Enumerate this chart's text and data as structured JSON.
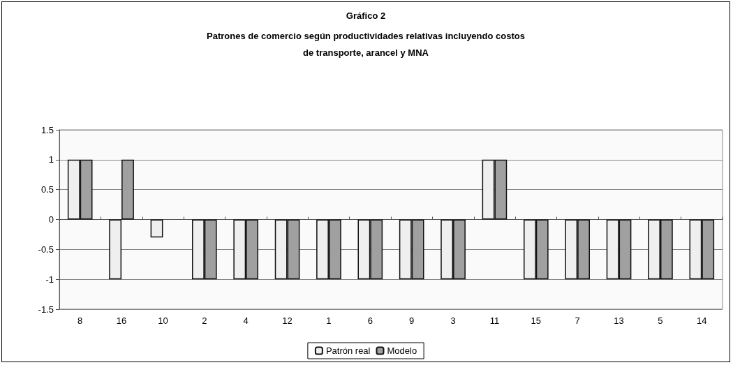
{
  "chart_data": {
    "type": "bar",
    "title": "Gráfico 2",
    "subtitle": "Patrones de comercio según productividades relativas incluyendo costos\nde transporte, arancel y MNA",
    "categories": [
      "8",
      "16",
      "10",
      "2",
      "4",
      "12",
      "1",
      "6",
      "9",
      "3",
      "11",
      "15",
      "7",
      "13",
      "5",
      "14"
    ],
    "series": [
      {
        "name": "Patrón real",
        "color": "#efefef",
        "values": [
          1,
          -1,
          -0.3,
          -1,
          -1,
          -1,
          -1,
          -1,
          -1,
          -1,
          1,
          -1,
          -1,
          -1,
          -1,
          -1
        ]
      },
      {
        "name": "Modelo",
        "color": "#a0a0a0",
        "values": [
          1,
          1,
          null,
          -1,
          -1,
          -1,
          -1,
          -1,
          -1,
          -1,
          1,
          -1,
          -1,
          -1,
          -1,
          -1
        ]
      }
    ],
    "ylim": [
      -1.5,
      1.5
    ],
    "yticks": [
      -1.5,
      -1,
      -0.5,
      0,
      0.5,
      1,
      1.5
    ],
    "grid": "y",
    "legend": "bottom"
  }
}
